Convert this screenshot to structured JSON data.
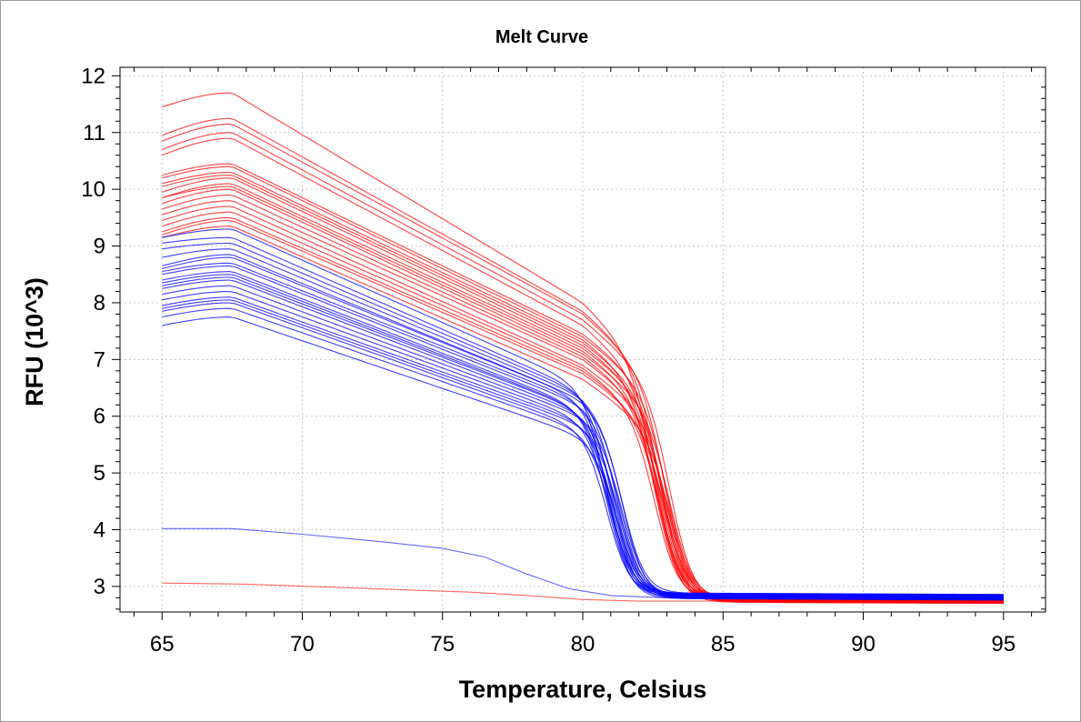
{
  "chart_data": {
    "type": "line",
    "title": "Melt Curve",
    "xlabel": "Temperature, Celsius",
    "ylabel": "RFU (10^3)",
    "xlim": [
      63.5,
      96.5
    ],
    "ylim": [
      2.55,
      12.15
    ],
    "x_ticks": [
      65,
      70,
      75,
      80,
      85,
      90,
      95
    ],
    "x_tick_labels": [
      "65",
      "70",
      "75",
      "80",
      "85",
      "90",
      "95"
    ],
    "y_ticks": [
      3,
      4,
      5,
      6,
      7,
      8,
      9,
      10,
      11,
      12
    ],
    "y_tick_labels": [
      "3",
      "4",
      "5",
      "6",
      "7",
      "8",
      "9",
      "10",
      "11",
      "12"
    ],
    "grid": true,
    "legend": "none",
    "colors": {
      "red": "#ff0000",
      "blue": "#0000ff",
      "grid": "#c8c8c8",
      "frame": "#000000"
    },
    "groups": [
      {
        "color": "red",
        "tm": 82.9,
        "width": 0.42,
        "tail_start_range": [
          2.72,
          2.8
        ],
        "curves": [
          {
            "y65": 11.45,
            "y68": 11.7,
            "y80": 8.0
          },
          {
            "y65": 10.95,
            "y68": 11.25,
            "y80": 7.85
          },
          {
            "y65": 10.85,
            "y68": 11.15,
            "y80": 7.8
          },
          {
            "y65": 10.7,
            "y68": 11.0,
            "y80": 7.7
          },
          {
            "y65": 10.6,
            "y68": 10.9,
            "y80": 7.6
          },
          {
            "y65": 10.25,
            "y68": 10.45,
            "y80": 7.45
          },
          {
            "y65": 10.2,
            "y68": 10.4,
            "y80": 7.4
          },
          {
            "y65": 10.1,
            "y68": 10.3,
            "y80": 7.35
          },
          {
            "y65": 9.95,
            "y68": 10.2,
            "y80": 7.25
          },
          {
            "y65": 9.85,
            "y68": 10.1,
            "y80": 7.2
          },
          {
            "y65": 9.75,
            "y68": 10.0,
            "y80": 7.1
          },
          {
            "y65": 9.65,
            "y68": 9.9,
            "y80": 7.05
          },
          {
            "y65": 9.55,
            "y68": 9.8,
            "y80": 7.0
          },
          {
            "y65": 9.45,
            "y68": 9.7,
            "y80": 6.9
          },
          {
            "y65": 9.35,
            "y68": 9.6,
            "y80": 6.85
          },
          {
            "y65": 9.25,
            "y68": 9.5,
            "y80": 6.8
          },
          {
            "y65": 9.2,
            "y68": 9.45,
            "y80": 6.75
          },
          {
            "y65": 9.15,
            "y68": 9.35,
            "y80": 6.65
          },
          {
            "y65": 9.85,
            "y68": 10.05,
            "y80": 7.15
          },
          {
            "y65": 10.05,
            "y68": 10.25,
            "y80": 7.3
          }
        ]
      },
      {
        "color": "blue",
        "tm": 81.2,
        "width": 0.4,
        "tail_start_range": [
          2.78,
          2.88
        ],
        "curves": [
          {
            "y65": 9.15,
            "y68": 9.3,
            "y80": 6.55
          },
          {
            "y65": 9.05,
            "y68": 9.15,
            "y80": 6.45
          },
          {
            "y65": 8.95,
            "y68": 9.05,
            "y80": 6.4
          },
          {
            "y65": 8.8,
            "y68": 8.95,
            "y80": 6.35
          },
          {
            "y65": 8.65,
            "y68": 8.85,
            "y80": 6.3
          },
          {
            "y65": 8.55,
            "y68": 8.7,
            "y80": 6.25
          },
          {
            "y65": 8.5,
            "y68": 8.65,
            "y80": 6.2
          },
          {
            "y65": 8.4,
            "y68": 8.55,
            "y80": 6.15
          },
          {
            "y65": 8.3,
            "y68": 8.45,
            "y80": 6.1
          },
          {
            "y65": 8.25,
            "y68": 8.4,
            "y80": 6.05
          },
          {
            "y65": 8.15,
            "y68": 8.3,
            "y80": 6.0
          },
          {
            "y65": 8.05,
            "y68": 8.2,
            "y80": 5.95
          },
          {
            "y65": 7.95,
            "y68": 8.1,
            "y80": 5.9
          },
          {
            "y65": 7.9,
            "y68": 8.05,
            "y80": 5.85
          },
          {
            "y65": 7.85,
            "y68": 8.0,
            "y80": 5.8
          },
          {
            "y65": 7.75,
            "y68": 7.9,
            "y80": 5.75
          },
          {
            "y65": 7.6,
            "y68": 7.75,
            "y80": 5.65
          },
          {
            "y65": 8.6,
            "y68": 8.8,
            "y80": 6.3
          },
          {
            "y65": 8.35,
            "y68": 8.5,
            "y80": 6.12
          }
        ]
      }
    ],
    "baseline_curves": [
      {
        "color": "blue",
        "points": [
          [
            65,
            4.02
          ],
          [
            67.5,
            4.02
          ],
          [
            70,
            3.92
          ],
          [
            73,
            3.78
          ],
          [
            75,
            3.67
          ],
          [
            76.5,
            3.52
          ],
          [
            78,
            3.22
          ],
          [
            79.5,
            2.96
          ],
          [
            81,
            2.84
          ],
          [
            83,
            2.8
          ],
          [
            85,
            2.8
          ]
        ]
      },
      {
        "color": "red",
        "points": [
          [
            65,
            3.06
          ],
          [
            68,
            3.04
          ],
          [
            72,
            2.97
          ],
          [
            76,
            2.9
          ],
          [
            78,
            2.84
          ],
          [
            80,
            2.77
          ],
          [
            82,
            2.74
          ],
          [
            85,
            2.74
          ]
        ]
      }
    ]
  }
}
